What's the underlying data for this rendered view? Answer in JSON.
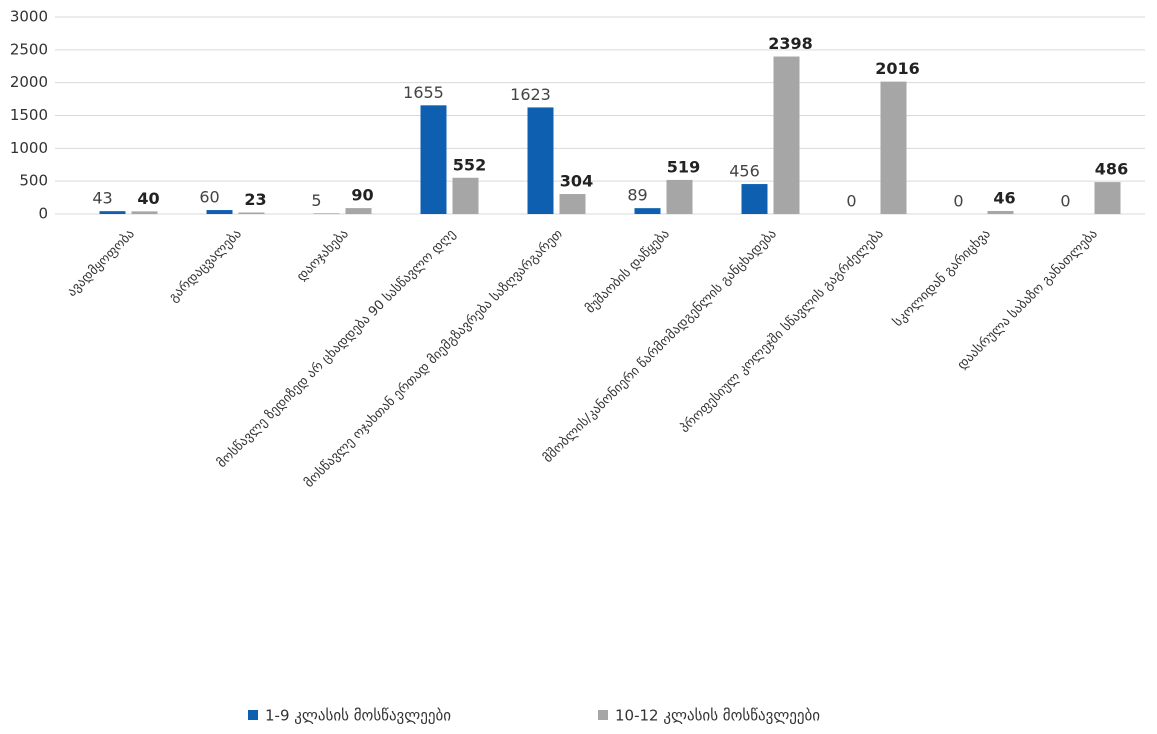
{
  "chart_data": {
    "type": "bar",
    "categories": [
      "ავადმყოფობა",
      "გარდაცვალება",
      "დაოჯახება",
      "მოსწავლე ზედიზედ არ ცხადდება 90 სასწავლო დღე",
      "მოსწავლე ოჯახთან ერთად მიემგზავრება საზღვარგარეთ",
      "მუშაობის დაწყება",
      "მშობლის/კანონიერი წარმომადგენლის განცხადება",
      "პროფესიულ კოლეჯში სწავლის გაგრძელება",
      "სკოლიდან გარიცხვა",
      "დაასრულა საბაზო განათლება"
    ],
    "series": [
      {
        "name": "1-9 კლასის მოსწავლეები",
        "color": "#0f5fb0",
        "values": [
          43,
          60,
          5,
          1655,
          1623,
          89,
          456,
          0,
          0,
          0
        ]
      },
      {
        "name": "10-12 კლასის მოსწავლეები",
        "color": "#a6a6a6",
        "values": [
          40,
          23,
          90,
          552,
          304,
          519,
          2398,
          2016,
          46,
          486
        ]
      }
    ],
    "ylim": [
      0,
      3000
    ],
    "yticks": [
      0,
      500,
      1000,
      1500,
      2000,
      2500,
      3000
    ],
    "grid": true,
    "legend": "bottom"
  }
}
